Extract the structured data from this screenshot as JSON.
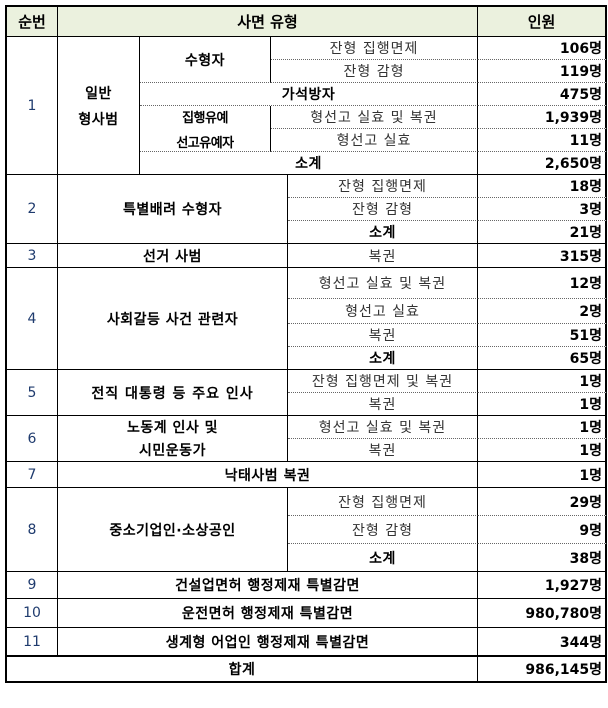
{
  "header": {
    "no": "순번",
    "type": "사면 유형",
    "count": "인원"
  },
  "r1": {
    "no": "1",
    "category_line1": "일반",
    "category_line2": "형사범",
    "prisoners": "수형자",
    "d1": "잔형 집행면제",
    "v1": "106명",
    "d2": "잔형 감형",
    "v2": "119명",
    "parole": "가석방자",
    "v3": "475명",
    "probation_line1": "집행유예",
    "probation_line2": "선고유예자",
    "d4": "형선고 실효 및 복권",
    "v4": "1,939명",
    "d5": "형선고 실효",
    "v5": "11명",
    "subtotal": "소계",
    "v6": "2,650명"
  },
  "r2": {
    "no": "2",
    "category": "특별배려 수형자",
    "d1": "잔형 집행면제",
    "v1": "18명",
    "d2": "잔형 감형",
    "v2": "3명",
    "subtotal": "소계",
    "v3": "21명"
  },
  "r3": {
    "no": "3",
    "category": "선거 사범",
    "d1": "복권",
    "v1": "315명"
  },
  "r4": {
    "no": "4",
    "category": "사회갈등 사건 관련자",
    "d1": "형선고 실효 및 복권",
    "v1": "12명",
    "d2": "형선고 실효",
    "v2": "2명",
    "d3": "복권",
    "v3": "51명",
    "subtotal": "소계",
    "v4": "65명"
  },
  "r5": {
    "no": "5",
    "category": "전직 대통령 등 주요 인사",
    "d1": "잔형 집행면제 및 복권",
    "v1": "1명",
    "d2": "복권",
    "v2": "1명"
  },
  "r6": {
    "no": "6",
    "category_line1": "노동계 인사 및",
    "category_line2": "시민운동가",
    "d1": "형선고 실효 및 복권",
    "v1": "1명",
    "d2": "복권",
    "v2": "1명"
  },
  "r7": {
    "no": "7",
    "category": "낙태사범 복권",
    "v1": "1명"
  },
  "r8": {
    "no": "8",
    "category": "중소기업인·소상공인",
    "d1": "잔형 집행면제",
    "v1": "29명",
    "d2": "잔형 감형",
    "v2": "9명",
    "subtotal": "소계",
    "v3": "38명"
  },
  "r9": {
    "no": "9",
    "category": "건설업면허 행정제재 특별감면",
    "v1": "1,927명"
  },
  "r10": {
    "no": "10",
    "category": "운전면허 행정제재 특별감면",
    "v1": "980,780명"
  },
  "r11": {
    "no": "11",
    "category": "생계형 어업인 행정제재 특별감면",
    "v1": "344명"
  },
  "total": {
    "label": "합계",
    "value": "986,145명"
  }
}
